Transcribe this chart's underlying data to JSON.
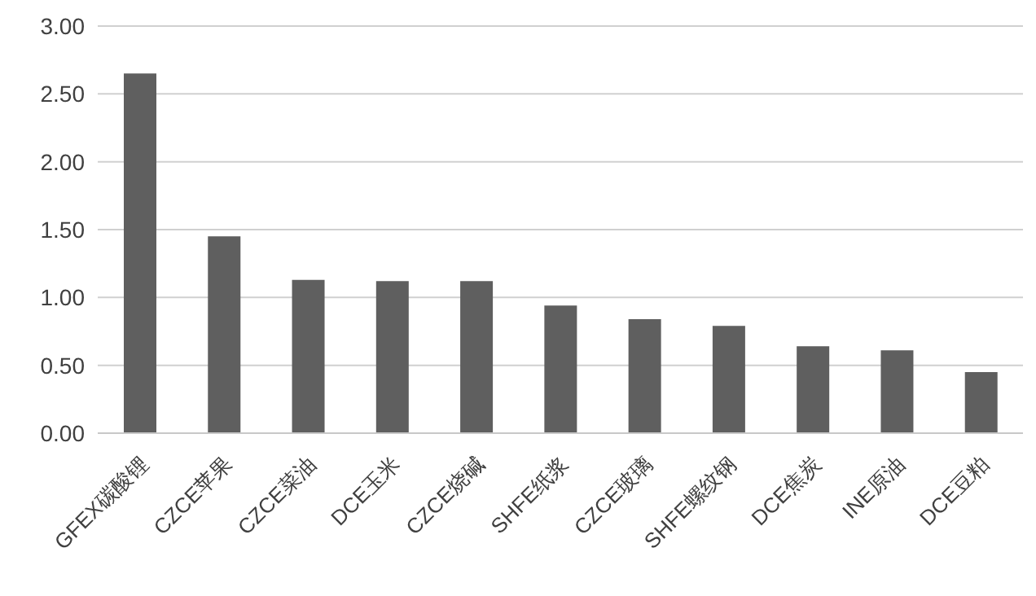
{
  "chart_data": {
    "type": "bar",
    "categories": [
      "GFEX碳酸锂",
      "CZCE苹果",
      "CZCE菜油",
      "DCE玉米",
      "CZCE烧碱",
      "SHFE纸浆",
      "CZCE玻璃",
      "SHFE螺纹钢",
      "DCE焦炭",
      "INE原油",
      "DCE豆粕"
    ],
    "values": [
      2.65,
      1.45,
      1.13,
      1.12,
      1.12,
      0.94,
      0.84,
      0.79,
      0.64,
      0.61,
      0.45
    ],
    "color": "#5f5f5f",
    "ylim": [
      0,
      3
    ],
    "yticks": [
      {
        "value": 0,
        "label": "0.00"
      },
      {
        "value": 0.5,
        "label": "0.50"
      },
      {
        "value": 1,
        "label": "1.00"
      },
      {
        "value": 1.5,
        "label": "1.50"
      },
      {
        "value": 2,
        "label": "2.00"
      },
      {
        "value": 2.5,
        "label": "2.50"
      },
      {
        "value": 3,
        "label": "3.00"
      }
    ],
    "grid": "y"
  }
}
